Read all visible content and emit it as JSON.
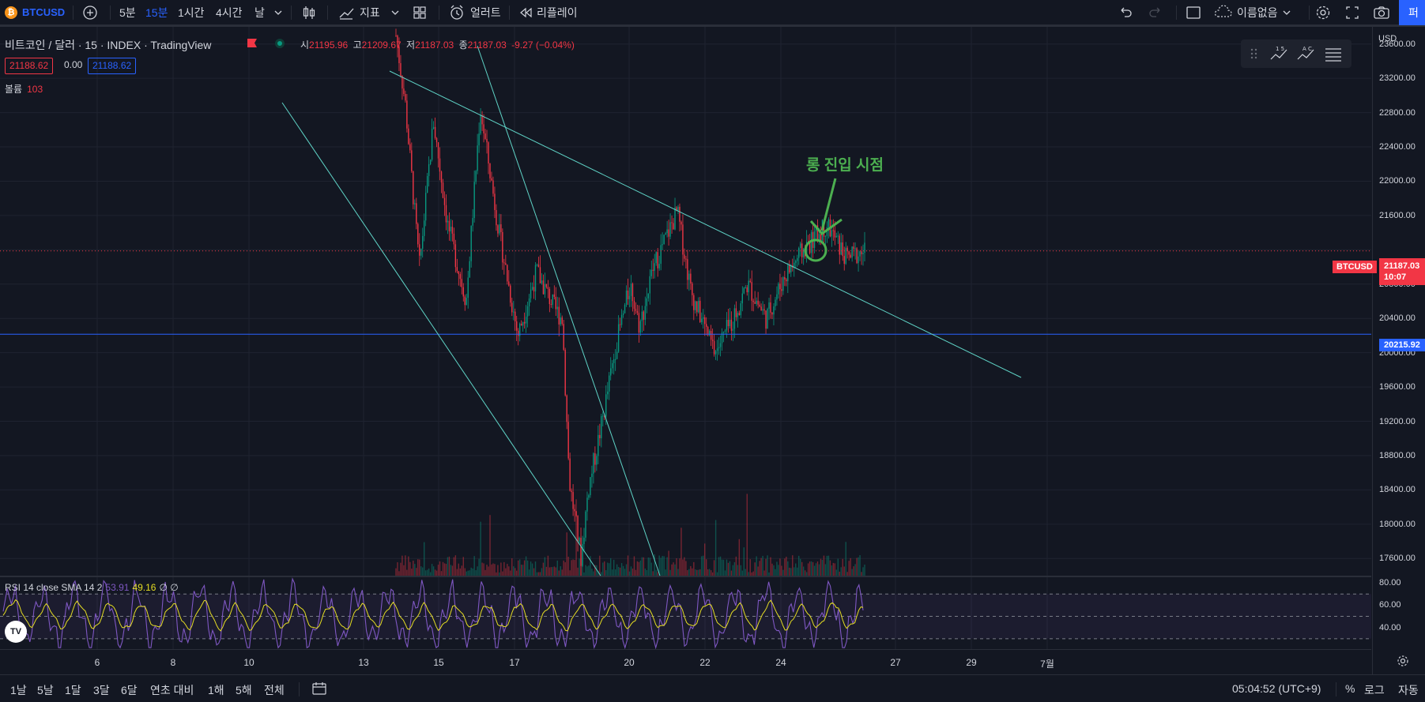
{
  "toolbar": {
    "symbol": "BTCUSD",
    "intervals": [
      "5분",
      "15분",
      "1시간",
      "4시간",
      "날"
    ],
    "active_interval": "15분",
    "indicators_label": "지표",
    "alert_label": "얼러트",
    "replay_label": "리플레이",
    "layout_name": "이름없음",
    "publish_label": "퍼"
  },
  "legend": {
    "title": "비트코인 / 달러 · 15 · INDEX · TradingView",
    "ohlc": {
      "open_label": "시",
      "open": "21195.96",
      "high_label": "고",
      "high": "21209.67",
      "low_label": "저",
      "low": "21187.03",
      "close_label": "종",
      "close": "21187.03",
      "change": "-9.27 (−0.04%)"
    },
    "bid": "21188.62",
    "spread": "0.00",
    "ask": "21188.62",
    "volume_label": "볼륨",
    "volume": "103"
  },
  "rsi_legend": {
    "label": "RSI 14 close SMA 14 2",
    "rsi": "53.91",
    "sma": "49.16",
    "extra": "∅ ∅"
  },
  "annotation": "롱 진입 시점",
  "price_axis": {
    "currency": "USD",
    "ticks": [
      "23600.00",
      "23200.00",
      "22800.00",
      "22400.00",
      "22000.00",
      "21600.00",
      "20800.00",
      "20400.00",
      "20000.00",
      "19600.00",
      "19200.00",
      "18800.00",
      "18400.00",
      "18000.00",
      "17600.00"
    ],
    "rsi_ticks": [
      "80.00",
      "60.00",
      "40.00"
    ],
    "last_price": "21187.03",
    "countdown": "10:07",
    "symbol_tag": "BTCUSD",
    "hline_price": "20215.92"
  },
  "time_axis": {
    "ticks": [
      "6",
      "8",
      "10",
      "13",
      "15",
      "17",
      "20",
      "22",
      "24",
      "27",
      "29",
      "7월"
    ]
  },
  "bottom_bar": {
    "ranges": [
      "1날",
      "5날",
      "1달",
      "3달",
      "6달",
      "연초 대비",
      "1해",
      "5해",
      "전체"
    ],
    "clock": "05:04:52 (UTC+9)",
    "percent": "%",
    "log": "로그",
    "auto": "자동"
  },
  "colors": {
    "background": "#131722",
    "up": "#089981",
    "down": "#f23645",
    "accent": "#2962ff",
    "trendline": "#5fd3c6",
    "annotation": "#4caf50",
    "rsi": "#7e57c2",
    "rsi_sma": "#e5dd23"
  },
  "chart_data": {
    "type": "candlestick",
    "symbol": "BTCUSD",
    "interval": "15",
    "y_range": [
      17400,
      23800
    ],
    "horizontal_line": 20215.92,
    "last_price": 21187.03,
    "path": [
      [
        0.0,
        23700
      ],
      [
        0.02,
        22900
      ],
      [
        0.05,
        21000
      ],
      [
        0.08,
        22700
      ],
      [
        0.11,
        21500
      ],
      [
        0.15,
        20600
      ],
      [
        0.18,
        22850
      ],
      [
        0.22,
        21400
      ],
      [
        0.26,
        20200
      ],
      [
        0.3,
        20950
      ],
      [
        0.34,
        20500
      ],
      [
        0.355,
        20400
      ],
      [
        0.37,
        18500
      ],
      [
        0.395,
        17600
      ],
      [
        0.41,
        18400
      ],
      [
        0.44,
        19200
      ],
      [
        0.47,
        20100
      ],
      [
        0.5,
        20800
      ],
      [
        0.52,
        20300
      ],
      [
        0.55,
        21000
      ],
      [
        0.6,
        21650
      ],
      [
        0.63,
        20700
      ],
      [
        0.68,
        20000
      ],
      [
        0.72,
        20400
      ],
      [
        0.75,
        20800
      ],
      [
        0.79,
        20400
      ],
      [
        0.83,
        20900
      ],
      [
        0.87,
        21200
      ],
      [
        0.92,
        21500
      ],
      [
        0.96,
        21100
      ],
      [
        1.0,
        21187
      ]
    ],
    "rsi": {
      "levels": [
        30,
        50,
        70
      ],
      "y_range": [
        20,
        85
      ],
      "last_rsi": 53.91,
      "last_sma": 49.16
    }
  }
}
